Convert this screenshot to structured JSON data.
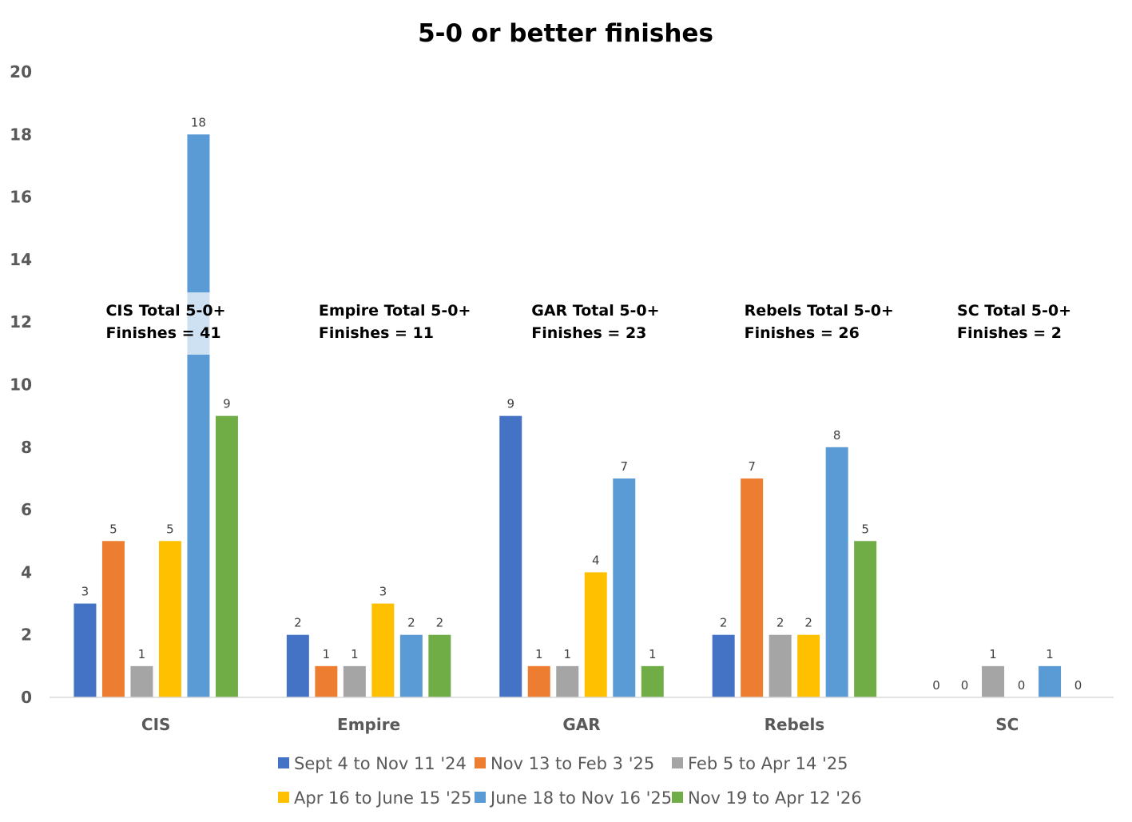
{
  "chart_data": {
    "type": "bar",
    "title": "5-0 or better finishes",
    "xlabel": "",
    "ylabel": "",
    "categories": [
      "CIS",
      "Empire",
      "GAR",
      "Rebels",
      "SC"
    ],
    "ylim": [
      0,
      20
    ],
    "yticks": [
      0,
      2,
      4,
      6,
      8,
      10,
      12,
      14,
      16,
      18,
      20
    ],
    "grid": false,
    "legend_position": "bottom",
    "series": [
      {
        "name": "Sept 4 to Nov 11 '24",
        "color": "#4472C4",
        "values": [
          3,
          2,
          9,
          2,
          0
        ]
      },
      {
        "name": "Nov 13 to Feb 3 '25",
        "color": "#ED7D31",
        "values": [
          5,
          1,
          1,
          7,
          0
        ]
      },
      {
        "name": "Feb 5 to Apr 14 '25",
        "color": "#A5A5A5",
        "values": [
          1,
          1,
          1,
          2,
          1
        ]
      },
      {
        "name": "Apr 16 to June 15 '25",
        "color": "#FFC000",
        "values": [
          5,
          3,
          4,
          2,
          0
        ]
      },
      {
        "name": "June 18 to Nov 16 '25",
        "color": "#5B9BD5",
        "values": [
          18,
          2,
          7,
          8,
          1
        ]
      },
      {
        "name": "Nov 19 to Apr 12 '26",
        "color": "#70AD47",
        "values": [
          9,
          2,
          1,
          5,
          0
        ]
      }
    ],
    "annotations": [
      {
        "category": "CIS",
        "line1": "CIS Total 5-0+",
        "line2": "Finishes = 41"
      },
      {
        "category": "Empire",
        "line1": "Empire Total 5-0+",
        "line2": "Finishes = 11"
      },
      {
        "category": "GAR",
        "line1": "GAR Total 5-0+",
        "line2": "Finishes = 23"
      },
      {
        "category": "Rebels",
        "line1": "Rebels Total 5-0+",
        "line2": "Finishes = 26"
      },
      {
        "category": "SC",
        "line1": "SC Total 5-0+",
        "line2": "Finishes = 2"
      }
    ]
  }
}
